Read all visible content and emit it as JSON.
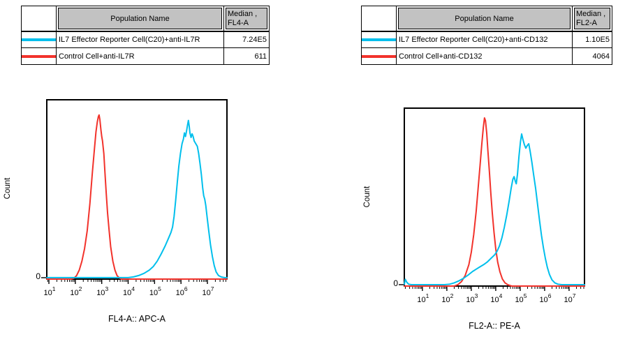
{
  "tables": [
    {
      "headers": {
        "population": "Population Name",
        "median_line1": "Median ,",
        "median_line2": "FL4-A"
      },
      "rows": [
        {
          "name": "IL7 Effector Reporter Cell(C20)+anti-IL7R",
          "median": "7.24E5",
          "color": "#00bfec"
        },
        {
          "name": "Control Cell+anti-IL7R",
          "median": "611",
          "color": "#f2322b"
        }
      ]
    },
    {
      "headers": {
        "population": "Population Name",
        "median_line1": "Median ,",
        "median_line2": "FL2-A"
      },
      "rows": [
        {
          "name": "IL7 Effector Reporter Cell(C20)+anti-CD132",
          "median": "1.10E5",
          "color": "#00bfec"
        },
        {
          "name": "Control Cell+anti-CD132",
          "median": "4064",
          "color": "#f2322b"
        }
      ]
    }
  ],
  "chart_data": [
    {
      "type": "line",
      "title": "",
      "xlabel": "FL4-A:: APC-A",
      "ylabel": "Count",
      "y_zero_label": "0",
      "x_scale": "log10",
      "x_tick_decades": [
        1,
        2,
        3,
        4,
        5,
        6,
        7
      ],
      "x_range_log10": [
        0.92,
        7.74
      ],
      "grid": false,
      "legend": "none",
      "series": [
        {
          "name": "Control Cell+anti-IL7R",
          "color": "#f2322b",
          "median_stat": "611",
          "peak_log10x": 2.9,
          "points": [
            [
              0.92,
              0
            ],
            [
              1.85,
              0
            ],
            [
              1.95,
              0.005
            ],
            [
              2.05,
              0.02
            ],
            [
              2.15,
              0.05
            ],
            [
              2.25,
              0.1
            ],
            [
              2.35,
              0.17
            ],
            [
              2.45,
              0.27
            ],
            [
              2.55,
              0.42
            ],
            [
              2.65,
              0.6
            ],
            [
              2.72,
              0.72
            ],
            [
              2.78,
              0.82
            ],
            [
              2.83,
              0.875
            ],
            [
              2.87,
              0.905
            ],
            [
              2.9,
              0.915
            ],
            [
              2.93,
              0.89
            ],
            [
              2.97,
              0.83
            ],
            [
              3.0,
              0.795
            ],
            [
              3.03,
              0.77
            ],
            [
              3.05,
              0.74
            ],
            [
              3.08,
              0.7
            ],
            [
              3.12,
              0.6
            ],
            [
              3.17,
              0.48
            ],
            [
              3.22,
              0.37
            ],
            [
              3.28,
              0.27
            ],
            [
              3.34,
              0.18
            ],
            [
              3.42,
              0.1
            ],
            [
              3.5,
              0.05
            ],
            [
              3.58,
              0.02
            ],
            [
              3.66,
              0.007
            ],
            [
              3.74,
              0
            ],
            [
              7.74,
              0
            ]
          ]
        },
        {
          "name": "IL7 Effector Reporter Cell(C20)+anti-IL7R",
          "color": "#00bfec",
          "median_stat": "7.24E5",
          "peak_log10x": 6.28,
          "points": [
            [
              0.92,
              0.008
            ],
            [
              4.0,
              0.008
            ],
            [
              4.2,
              0.012
            ],
            [
              4.4,
              0.02
            ],
            [
              4.6,
              0.032
            ],
            [
              4.8,
              0.05
            ],
            [
              4.95,
              0.07
            ],
            [
              5.1,
              0.1
            ],
            [
              5.25,
              0.14
            ],
            [
              5.4,
              0.185
            ],
            [
              5.52,
              0.225
            ],
            [
              5.62,
              0.26
            ],
            [
              5.68,
              0.29
            ],
            [
              5.74,
              0.35
            ],
            [
              5.8,
              0.44
            ],
            [
              5.86,
              0.54
            ],
            [
              5.92,
              0.63
            ],
            [
              5.98,
              0.7
            ],
            [
              6.04,
              0.755
            ],
            [
              6.09,
              0.78
            ],
            [
              6.13,
              0.815
            ],
            [
              6.17,
              0.795
            ],
            [
              6.21,
              0.825
            ],
            [
              6.25,
              0.86
            ],
            [
              6.28,
              0.885
            ],
            [
              6.31,
              0.855
            ],
            [
              6.34,
              0.815
            ],
            [
              6.38,
              0.79
            ],
            [
              6.42,
              0.81
            ],
            [
              6.46,
              0.795
            ],
            [
              6.5,
              0.77
            ],
            [
              6.56,
              0.755
            ],
            [
              6.62,
              0.74
            ],
            [
              6.67,
              0.7
            ],
            [
              6.72,
              0.645
            ],
            [
              6.77,
              0.585
            ],
            [
              6.82,
              0.51
            ],
            [
              6.86,
              0.465
            ],
            [
              6.9,
              0.445
            ],
            [
              6.94,
              0.41
            ],
            [
              6.99,
              0.345
            ],
            [
              7.05,
              0.27
            ],
            [
              7.12,
              0.19
            ],
            [
              7.19,
              0.125
            ],
            [
              7.26,
              0.075
            ],
            [
              7.33,
              0.04
            ],
            [
              7.42,
              0.02
            ],
            [
              7.52,
              0.012
            ],
            [
              7.64,
              0.008
            ],
            [
              7.74,
              0.008
            ]
          ]
        }
      ]
    },
    {
      "type": "line",
      "title": "",
      "xlabel": "FL2-A:: PE-A",
      "ylabel": "Count",
      "y_zero_label": "0",
      "x_scale": "log10",
      "x_tick_decades": [
        1,
        2,
        3,
        4,
        5,
        6,
        7
      ],
      "x_range_log10": [
        0.26,
        7.63
      ],
      "grid": false,
      "legend": "none",
      "series": [
        {
          "name": "Control Cell+anti-CD132",
          "color": "#f2322b",
          "median_stat": "4064",
          "peak_log10x": 3.54,
          "points": [
            [
              0.26,
              0
            ],
            [
              2.3,
              0
            ],
            [
              2.45,
              0.008
            ],
            [
              2.6,
              0.025
            ],
            [
              2.75,
              0.06
            ],
            [
              2.9,
              0.12
            ],
            [
              3.0,
              0.19
            ],
            [
              3.1,
              0.29
            ],
            [
              3.2,
              0.42
            ],
            [
              3.28,
              0.55
            ],
            [
              3.36,
              0.68
            ],
            [
              3.43,
              0.8
            ],
            [
              3.49,
              0.89
            ],
            [
              3.54,
              0.945
            ],
            [
              3.58,
              0.93
            ],
            [
              3.63,
              0.86
            ],
            [
              3.68,
              0.76
            ],
            [
              3.74,
              0.645
            ],
            [
              3.8,
              0.52
            ],
            [
              3.86,
              0.41
            ],
            [
              3.93,
              0.3
            ],
            [
              4.0,
              0.21
            ],
            [
              4.08,
              0.135
            ],
            [
              4.17,
              0.08
            ],
            [
              4.27,
              0.04
            ],
            [
              4.38,
              0.018
            ],
            [
              4.5,
              0.007
            ],
            [
              4.65,
              0
            ],
            [
              7.63,
              0
            ]
          ]
        },
        {
          "name": "IL7 Effector Reporter Cell(C20)+anti-CD132",
          "color": "#00bfec",
          "median_stat": "1.10E5",
          "peak_log10x": 5.06,
          "points": [
            [
              0.26,
              0.01
            ],
            [
              0.3,
              0.038
            ],
            [
              0.36,
              0.022
            ],
            [
              0.44,
              0.01
            ],
            [
              0.55,
              0.008
            ],
            [
              1.9,
              0.008
            ],
            [
              2.1,
              0.01
            ],
            [
              2.3,
              0.018
            ],
            [
              2.5,
              0.03
            ],
            [
              2.7,
              0.045
            ],
            [
              2.9,
              0.065
            ],
            [
              3.05,
              0.082
            ],
            [
              3.2,
              0.095
            ],
            [
              3.35,
              0.108
            ],
            [
              3.5,
              0.12
            ],
            [
              3.65,
              0.135
            ],
            [
              3.8,
              0.155
            ],
            [
              3.95,
              0.175
            ],
            [
              4.05,
              0.195
            ],
            [
              4.15,
              0.225
            ],
            [
              4.25,
              0.27
            ],
            [
              4.35,
              0.33
            ],
            [
              4.45,
              0.4
            ],
            [
              4.55,
              0.48
            ],
            [
              4.63,
              0.55
            ],
            [
              4.7,
              0.6
            ],
            [
              4.75,
              0.615
            ],
            [
              4.8,
              0.59
            ],
            [
              4.84,
              0.575
            ],
            [
              4.89,
              0.63
            ],
            [
              4.95,
              0.73
            ],
            [
              5.01,
              0.81
            ],
            [
              5.06,
              0.855
            ],
            [
              5.11,
              0.825
            ],
            [
              5.17,
              0.795
            ],
            [
              5.23,
              0.775
            ],
            [
              5.29,
              0.79
            ],
            [
              5.35,
              0.8
            ],
            [
              5.41,
              0.755
            ],
            [
              5.48,
              0.695
            ],
            [
              5.55,
              0.625
            ],
            [
              5.63,
              0.55
            ],
            [
              5.71,
              0.46
            ],
            [
              5.79,
              0.37
            ],
            [
              5.87,
              0.285
            ],
            [
              5.95,
              0.215
            ],
            [
              6.03,
              0.155
            ],
            [
              6.11,
              0.105
            ],
            [
              6.2,
              0.065
            ],
            [
              6.3,
              0.035
            ],
            [
              6.42,
              0.018
            ],
            [
              6.55,
              0.01
            ],
            [
              6.7,
              0.008
            ],
            [
              7.63,
              0.008
            ]
          ]
        }
      ]
    }
  ]
}
